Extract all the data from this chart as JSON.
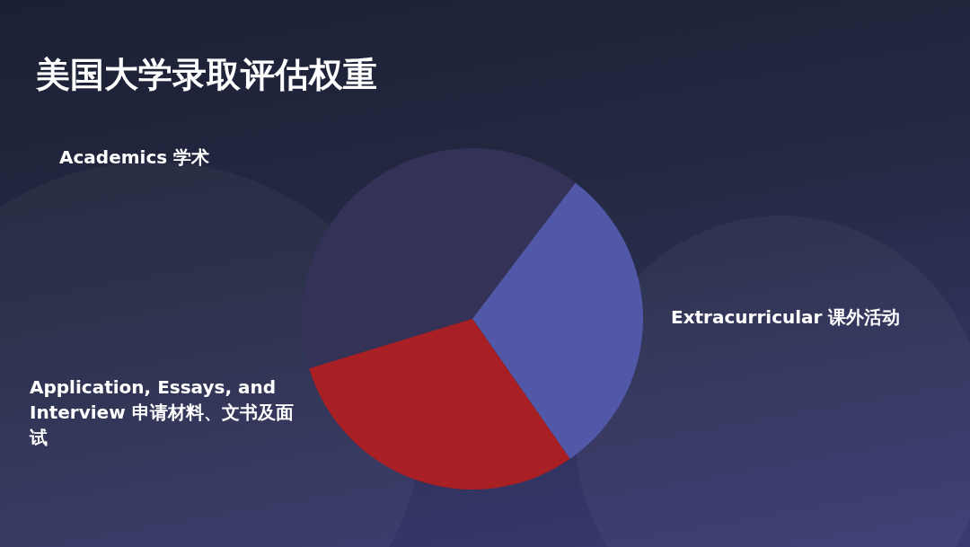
{
  "chart_data": {
    "type": "pie",
    "title": "美国大学录取评估权重",
    "categories": [
      "Academics 学术",
      "Extracurricular 课外活动",
      "Application, Essays, and Interview 申请材料、文书及面试"
    ],
    "values": [
      40,
      30,
      30
    ],
    "colors": [
      "#343257",
      "#5258a8",
      "#a81f24"
    ],
    "legend": false
  }
}
